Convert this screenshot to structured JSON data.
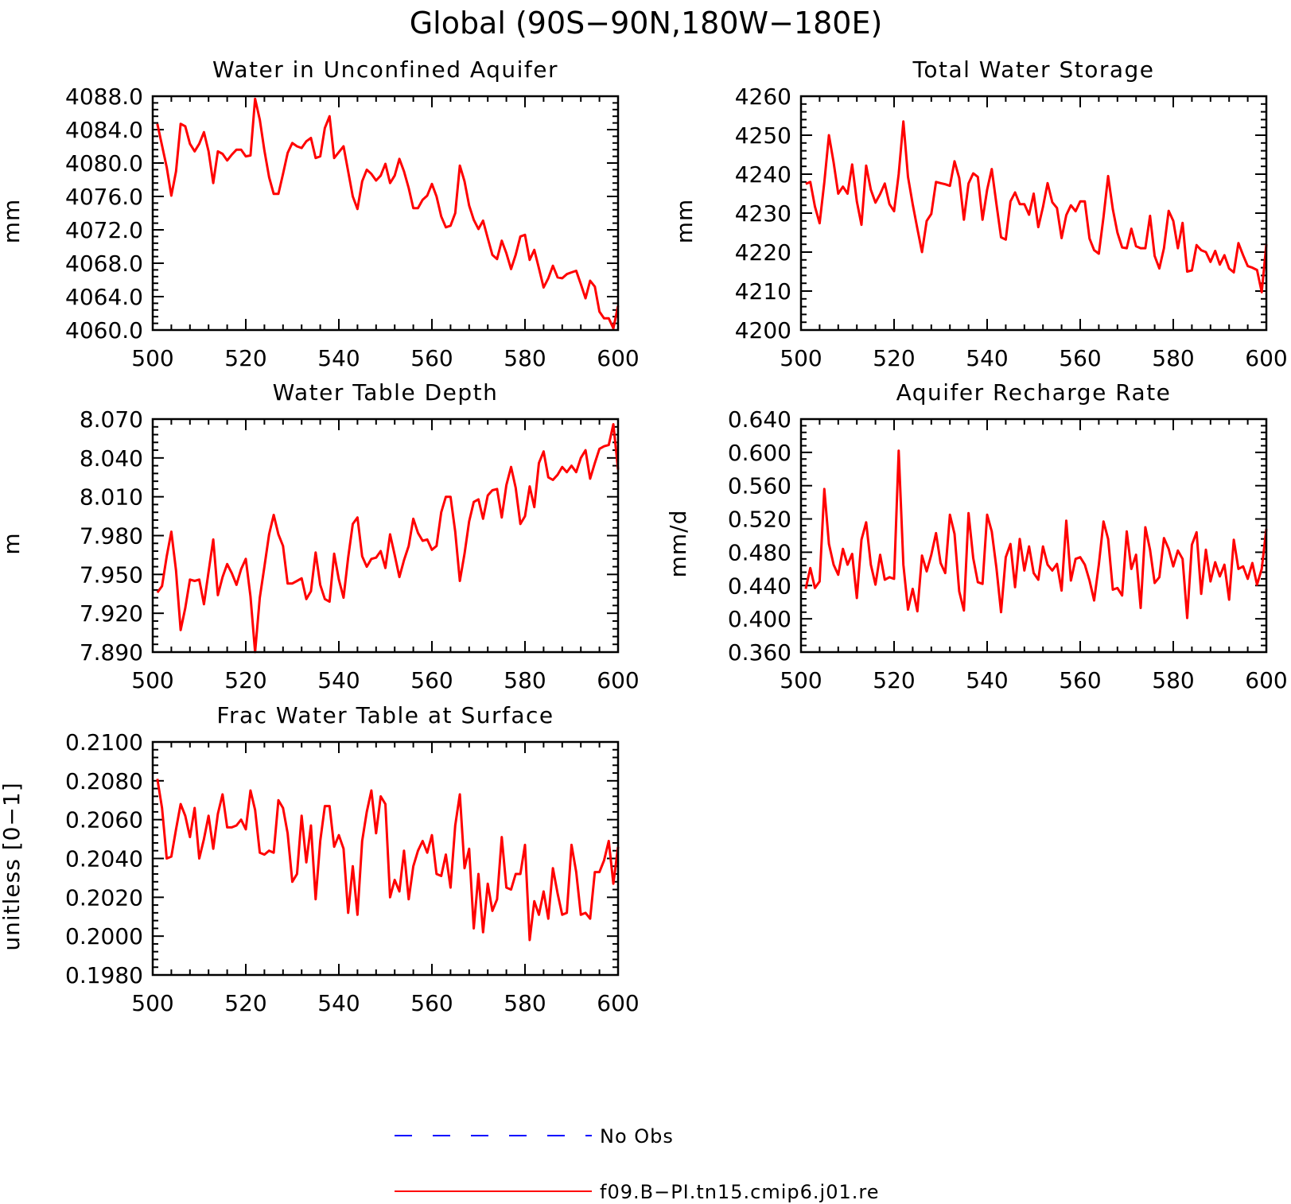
{
  "figure": {
    "title": "Global (90S−90N,180W−180E)"
  },
  "legend": {
    "entries": [
      {
        "label": "No Obs",
        "color": "#0000ff",
        "dash": "dashed"
      },
      {
        "label": "f09.B−PI.tn15.cmip6.j01.re",
        "color": "#ff0000",
        "dash": "solid"
      }
    ]
  },
  "chart_data": [
    {
      "type": "line",
      "title": "Water in Unconfined Aquifer",
      "xlabel": "",
      "ylabel": "mm",
      "xlim": [
        500,
        600
      ],
      "ylim": [
        4060.0,
        4088.0
      ],
      "xticks": [
        500,
        520,
        540,
        560,
        580,
        600
      ],
      "yticks": [
        4060.0,
        4064.0,
        4068.0,
        4072.0,
        4076.0,
        4080.0,
        4084.0,
        4088.0
      ],
      "ytick_labels": [
        "4060.0",
        "4064.0",
        "4068.0",
        "4072.0",
        "4076.0",
        "4080.0",
        "4084.0",
        "4088.0"
      ],
      "series": [
        {
          "name": "f09.B−PI.tn15.cmip6.j01.re",
          "color": "#ff0000",
          "x_start": 501,
          "x_step": 1,
          "values": [
            4084.7,
            4082.1,
            4079.5,
            4076.1,
            4079.0,
            4084.7,
            4084.4,
            4082.3,
            4081.4,
            4082.3,
            4083.7,
            4081.4,
            4077.6,
            4081.4,
            4081.1,
            4080.3,
            4081.0,
            4081.6,
            4081.6,
            4080.8,
            4080.9,
            4087.7,
            4085.2,
            4081.5,
            4078.3,
            4076.3,
            4076.3,
            4078.7,
            4081.2,
            4082.4,
            4082.0,
            4081.8,
            4082.6,
            4083.0,
            4080.6,
            4080.8,
            4084.2,
            4085.6,
            4080.6,
            4081.3,
            4082.0,
            4079.0,
            4076.0,
            4074.5,
            4077.8,
            4079.2,
            4078.7,
            4077.9,
            4078.5,
            4079.9,
            4077.6,
            4078.5,
            4080.5,
            4079.0,
            4077.0,
            4074.6,
            4074.6,
            4075.6,
            4076.1,
            4077.5,
            4076.0,
            4073.6,
            4072.3,
            4072.5,
            4074.0,
            4079.7,
            4077.8,
            4074.9,
            4073.2,
            4072.1,
            4073.1,
            4071.0,
            4069.0,
            4068.5,
            4070.7,
            4069.2,
            4067.3,
            4069.0,
            4071.2,
            4071.4,
            4068.4,
            4069.6,
            4067.4,
            4065.1,
            4066.2,
            4067.7,
            4066.3,
            4066.2,
            4066.7,
            4066.9,
            4067.1,
            4065.5,
            4063.8,
            4065.9,
            4065.2,
            4062.2,
            4061.4,
            4061.4,
            4060.2,
            4062.9
          ]
        }
      ]
    },
    {
      "type": "line",
      "title": "Total Water Storage",
      "xlabel": "",
      "ylabel": "mm",
      "xlim": [
        500,
        600
      ],
      "ylim": [
        4200,
        4260
      ],
      "xticks": [
        500,
        520,
        540,
        560,
        580,
        600
      ],
      "yticks": [
        4200,
        4210,
        4220,
        4230,
        4240,
        4250,
        4260
      ],
      "ytick_labels": [
        "4200",
        "4210",
        "4220",
        "4230",
        "4240",
        "4250",
        "4260"
      ],
      "series": [
        {
          "name": "f09.B−PI.tn15.cmip6.j01.re",
          "color": "#ff0000",
          "x_start": 501,
          "x_step": 1,
          "values": [
            4237.5,
            4238.0,
            4231.7,
            4227.4,
            4237.9,
            4250.0,
            4243.0,
            4235.0,
            4236.8,
            4235.0,
            4242.5,
            4233.0,
            4227.0,
            4242.2,
            4236.0,
            4232.7,
            4234.9,
            4237.6,
            4232.3,
            4230.5,
            4240.0,
            4253.5,
            4239.3,
            4232.3,
            4226.0,
            4220.0,
            4228.0,
            4229.8,
            4238.0,
            4237.7,
            4237.4,
            4237.0,
            4243.3,
            4239.0,
            4228.3,
            4237.6,
            4240.2,
            4239.3,
            4228.3,
            4236.0,
            4241.3,
            4232.3,
            4223.8,
            4223.2,
            4233.0,
            4235.3,
            4232.3,
            4232.3,
            4229.6,
            4235.0,
            4226.4,
            4231.6,
            4237.7,
            4232.8,
            4231.3,
            4223.6,
            4229.5,
            4232.0,
            4230.5,
            4233.0,
            4233.0,
            4223.5,
            4220.5,
            4219.6,
            4229.0,
            4239.5,
            4231.0,
            4225.0,
            4221.2,
            4221.0,
            4226.0,
            4221.5,
            4221.0,
            4221.0,
            4229.3,
            4219.0,
            4215.8,
            4221.0,
            4230.6,
            4228.0,
            4221.0,
            4227.5,
            4215.0,
            4215.3,
            4221.8,
            4220.5,
            4220.0,
            4217.5,
            4220.3,
            4216.8,
            4219.2,
            4215.8,
            4214.8,
            4222.3,
            4219.2,
            4216.4,
            4216.0,
            4215.4,
            4209.7,
            4222.0
          ]
        }
      ]
    },
    {
      "type": "line",
      "title": "Water Table Depth",
      "xlabel": "",
      "ylabel": "m",
      "xlim": [
        500,
        600
      ],
      "ylim": [
        7.89,
        8.07
      ],
      "xticks": [
        500,
        520,
        540,
        560,
        580,
        600
      ],
      "yticks": [
        7.89,
        7.92,
        7.95,
        7.98,
        8.01,
        8.04,
        8.07
      ],
      "ytick_labels": [
        "7.890",
        "7.920",
        "7.950",
        "7.980",
        "8.010",
        "8.040",
        "8.070"
      ],
      "series": [
        {
          "name": "f09.B−PI.tn15.cmip6.j01.re",
          "color": "#ff0000",
          "x_start": 501,
          "x_step": 1,
          "values": [
            7.936,
            7.941,
            7.964,
            7.983,
            7.953,
            7.907,
            7.924,
            7.946,
            7.945,
            7.946,
            7.927,
            7.952,
            7.977,
            7.934,
            7.948,
            7.958,
            7.951,
            7.942,
            7.954,
            7.962,
            7.933,
            7.89,
            7.932,
            7.956,
            7.981,
            7.996,
            7.981,
            7.972,
            7.943,
            7.943,
            7.945,
            7.947,
            7.931,
            7.937,
            7.967,
            7.942,
            7.931,
            7.929,
            7.966,
            7.946,
            7.932,
            7.963,
            7.989,
            7.994,
            7.964,
            7.956,
            7.962,
            7.963,
            7.968,
            7.955,
            7.981,
            7.965,
            7.948,
            7.961,
            7.972,
            7.993,
            7.982,
            7.976,
            7.977,
            7.969,
            7.972,
            7.998,
            8.01,
            8.01,
            7.983,
            7.945,
            7.966,
            7.991,
            8.006,
            8.008,
            7.993,
            8.011,
            8.015,
            8.016,
            7.994,
            8.019,
            8.033,
            8.017,
            7.989,
            7.995,
            8.018,
            8.002,
            8.036,
            8.045,
            8.025,
            8.023,
            8.027,
            8.033,
            8.029,
            8.034,
            8.029,
            8.04,
            8.046,
            8.024,
            8.036,
            8.047,
            8.049,
            8.05,
            8.066,
            8.031
          ]
        }
      ]
    },
    {
      "type": "line",
      "title": "Aquifer Recharge Rate",
      "xlabel": "",
      "ylabel": "mm/d",
      "xlim": [
        500,
        600
      ],
      "ylim": [
        0.36,
        0.64
      ],
      "xticks": [
        500,
        520,
        540,
        560,
        580,
        600
      ],
      "yticks": [
        0.36,
        0.4,
        0.44,
        0.48,
        0.52,
        0.56,
        0.6,
        0.64
      ],
      "ytick_labels": [
        "0.360",
        "0.400",
        "0.440",
        "0.480",
        "0.520",
        "0.560",
        "0.600",
        "0.640"
      ],
      "series": [
        {
          "name": "f09.B−PI.tn15.cmip6.j01.re",
          "color": "#ff0000",
          "x_start": 501,
          "x_step": 1,
          "values": [
            0.436,
            0.461,
            0.437,
            0.445,
            0.556,
            0.49,
            0.465,
            0.453,
            0.484,
            0.465,
            0.478,
            0.425,
            0.495,
            0.516,
            0.465,
            0.441,
            0.477,
            0.447,
            0.45,
            0.448,
            0.602,
            0.465,
            0.411,
            0.436,
            0.409,
            0.476,
            0.457,
            0.477,
            0.503,
            0.467,
            0.455,
            0.525,
            0.502,
            0.433,
            0.41,
            0.527,
            0.473,
            0.444,
            0.442,
            0.525,
            0.505,
            0.461,
            0.408,
            0.474,
            0.49,
            0.438,
            0.496,
            0.458,
            0.487,
            0.455,
            0.447,
            0.487,
            0.465,
            0.458,
            0.466,
            0.434,
            0.518,
            0.446,
            0.472,
            0.474,
            0.465,
            0.446,
            0.422,
            0.465,
            0.517,
            0.496,
            0.435,
            0.437,
            0.428,
            0.505,
            0.46,
            0.477,
            0.413,
            0.51,
            0.483,
            0.443,
            0.45,
            0.497,
            0.484,
            0.463,
            0.482,
            0.472,
            0.401,
            0.489,
            0.504,
            0.43,
            0.483,
            0.445,
            0.468,
            0.451,
            0.465,
            0.423,
            0.495,
            0.46,
            0.463,
            0.448,
            0.467,
            0.441,
            0.46,
            0.508
          ]
        }
      ]
    },
    {
      "type": "line",
      "title": "Frac Water Table at Surface",
      "xlabel": "",
      "ylabel": "unitless [0−1]",
      "xlim": [
        500,
        600
      ],
      "ylim": [
        0.198,
        0.21
      ],
      "xticks": [
        500,
        520,
        540,
        560,
        580,
        600
      ],
      "yticks": [
        0.198,
        0.2,
        0.202,
        0.204,
        0.206,
        0.208,
        0.21
      ],
      "ytick_labels": [
        "0.1980",
        "0.2000",
        "0.2020",
        "0.2040",
        "0.2060",
        "0.2080",
        "0.2100"
      ],
      "series": [
        {
          "name": "f09.B−PI.tn15.cmip6.j01.re",
          "color": "#ff0000",
          "x_start": 501,
          "x_step": 1,
          "values": [
            0.2081,
            0.2066,
            0.204,
            0.2041,
            0.2055,
            0.2068,
            0.2062,
            0.2051,
            0.2066,
            0.204,
            0.205,
            0.2062,
            0.2045,
            0.2063,
            0.2073,
            0.2056,
            0.2056,
            0.2057,
            0.206,
            0.2055,
            0.2075,
            0.2065,
            0.2043,
            0.2042,
            0.2044,
            0.2043,
            0.207,
            0.2066,
            0.2053,
            0.2028,
            0.2032,
            0.2062,
            0.2038,
            0.2057,
            0.2019,
            0.2049,
            0.2067,
            0.2067,
            0.2046,
            0.2052,
            0.2045,
            0.2012,
            0.2036,
            0.2011,
            0.2049,
            0.2064,
            0.2075,
            0.2053,
            0.2072,
            0.2068,
            0.202,
            0.2029,
            0.2023,
            0.2044,
            0.2019,
            0.2036,
            0.2044,
            0.2049,
            0.2043,
            0.2052,
            0.2032,
            0.2031,
            0.2042,
            0.2025,
            0.2057,
            0.2073,
            0.2035,
            0.2045,
            0.2004,
            0.2032,
            0.2002,
            0.2027,
            0.2013,
            0.2019,
            0.2051,
            0.2025,
            0.2024,
            0.2032,
            0.2032,
            0.2047,
            0.1998,
            0.2018,
            0.2011,
            0.2023,
            0.2009,
            0.2035,
            0.2022,
            0.2011,
            0.2012,
            0.2047,
            0.2033,
            0.2011,
            0.2012,
            0.2009,
            0.2033,
            0.2033,
            0.2039,
            0.2049,
            0.2027,
            0.2046
          ]
        }
      ]
    }
  ]
}
